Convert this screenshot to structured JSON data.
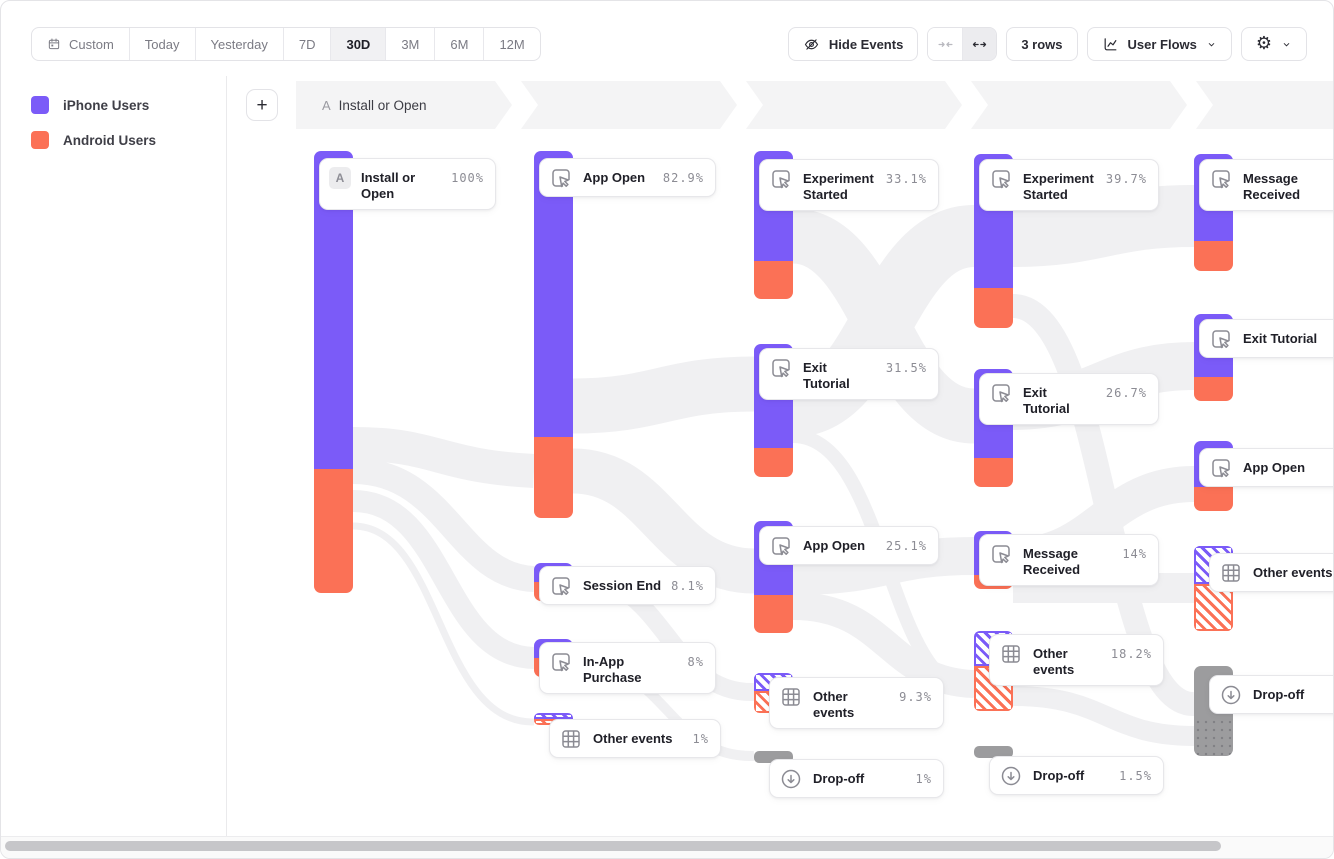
{
  "toolbar": {
    "date_ranges": [
      {
        "label": "Custom",
        "icon": "calendar-icon",
        "active": false
      },
      {
        "label": "Today",
        "active": false
      },
      {
        "label": "Yesterday",
        "active": false
      },
      {
        "label": "7D",
        "active": false
      },
      {
        "label": "30D",
        "active": true
      },
      {
        "label": "3M",
        "active": false
      },
      {
        "label": "6M",
        "active": false
      },
      {
        "label": "12M",
        "active": false
      }
    ],
    "hide_events_label": "Hide Events",
    "rows_label": "3 rows",
    "view_label": "User Flows",
    "add_button_label": "+"
  },
  "legend": {
    "items": [
      {
        "label": "iPhone Users",
        "color": "#7b5bf8"
      },
      {
        "label": "Android Users",
        "color": "#fb7156"
      }
    ]
  },
  "flow_header": {
    "step_letter": "A",
    "step_label": "Install or Open",
    "segment_count": 5
  },
  "chart_data": {
    "type": "sankey",
    "view": "User Flows",
    "date_range": "30D",
    "legend_position": "left",
    "series": [
      {
        "name": "iPhone Users",
        "color": "#7b5bf8"
      },
      {
        "name": "Android Users",
        "color": "#fb7156"
      }
    ],
    "dropoff_color": "#9c9c9e",
    "columns": [
      {
        "step": "A",
        "nodes": [
          {
            "label": "Install or Open",
            "value": "100%",
            "badge": "A",
            "kind": "event"
          }
        ]
      },
      {
        "nodes": [
          {
            "label": "App Open",
            "value": "82.9%",
            "kind": "event"
          },
          {
            "label": "Session End",
            "value": "8.1%",
            "kind": "event"
          },
          {
            "label": "In-App Purchase",
            "value": "8%",
            "kind": "event"
          },
          {
            "label": "Other events",
            "value": "1%",
            "kind": "other"
          }
        ]
      },
      {
        "nodes": [
          {
            "label": "Experiment Started",
            "value": "33.1%",
            "kind": "event"
          },
          {
            "label": "Exit Tutorial",
            "value": "31.5%",
            "kind": "event"
          },
          {
            "label": "App Open",
            "value": "25.1%",
            "kind": "event"
          },
          {
            "label": "Other events",
            "value": "9.3%",
            "kind": "other"
          },
          {
            "label": "Drop-off",
            "value": "1%",
            "kind": "dropoff"
          }
        ]
      },
      {
        "nodes": [
          {
            "label": "Experiment Started",
            "value": "39.7%",
            "kind": "event"
          },
          {
            "label": "Exit Tutorial",
            "value": "26.7%",
            "kind": "event"
          },
          {
            "label": "Message Received",
            "value": "14%",
            "kind": "event"
          },
          {
            "label": "Other events",
            "value": "18.2%",
            "kind": "other"
          },
          {
            "label": "Drop-off",
            "value": "1.5%",
            "kind": "dropoff"
          }
        ]
      },
      {
        "nodes": [
          {
            "label": "Message Received",
            "value": "",
            "kind": "event"
          },
          {
            "label": "Exit Tutorial",
            "value": "",
            "kind": "event"
          },
          {
            "label": "App Open",
            "value": "",
            "kind": "event"
          },
          {
            "label": "Other events",
            "value": "",
            "kind": "other"
          },
          {
            "label": "Drop-off",
            "value": "",
            "kind": "dropoff"
          }
        ]
      }
    ]
  }
}
